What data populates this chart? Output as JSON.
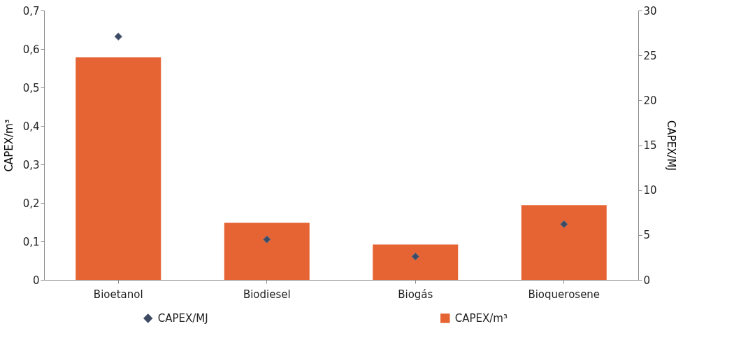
{
  "chart_data": {
    "type": "bar",
    "categories": [
      "Bioetanol",
      "Biodiesel",
      "Biogás",
      "Bioquerosene"
    ],
    "series": [
      {
        "name": "CAPEX/MJ",
        "type": "scatter",
        "axis": "y2",
        "color": "#3d4a63",
        "marker": "diamond",
        "values": [
          27.1,
          4.5,
          2.6,
          6.2
        ]
      },
      {
        "name": "CAPEX/m³",
        "color": "#e66433",
        "values": [
          0.578,
          0.148,
          0.092,
          0.194
        ]
      }
    ],
    "ylabel": "CAPEX/m³",
    "y2label": "CAPEX/MJ",
    "ylim": [
      0,
      0.7
    ],
    "yticks": [
      0,
      {
        "value": 0.1,
        "label": "0,1"
      },
      {
        "value": 0.2,
        "label": "0,2"
      },
      {
        "value": 0.3,
        "label": "0,3"
      },
      {
        "value": 0.4,
        "label": "0,4"
      },
      {
        "value": 0.5,
        "label": "0,5"
      },
      {
        "value": 0.6,
        "label": "0,6"
      },
      {
        "value": 0.7,
        "label": "0,7"
      }
    ],
    "y2lim": [
      0,
      30
    ],
    "y2ticks": [
      0,
      5,
      10,
      15,
      20,
      25,
      30
    ],
    "grid": false,
    "legend": "bottom"
  }
}
